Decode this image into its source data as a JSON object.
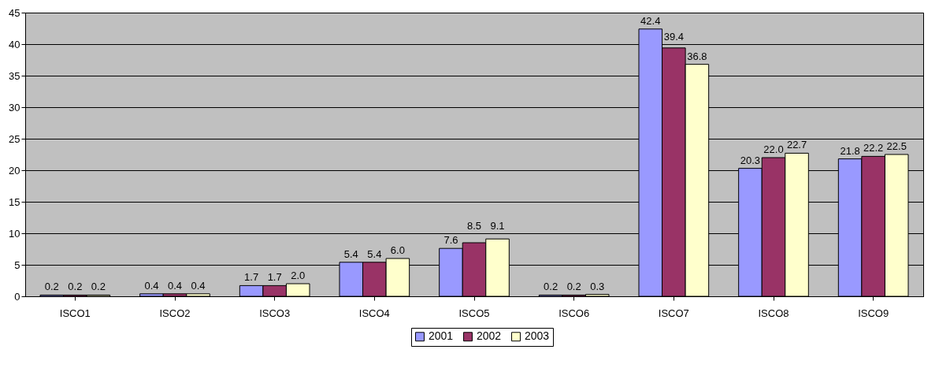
{
  "chart_data": {
    "type": "bar",
    "categories": [
      "ISCO1",
      "ISCO2",
      "ISCO3",
      "ISCO4",
      "ISCO5",
      "ISCO6",
      "ISCO7",
      "ISCO8",
      "ISCO9"
    ],
    "series": [
      {
        "name": "2001",
        "color": "#9999ff",
        "values": [
          0.2,
          0.4,
          1.7,
          5.4,
          7.6,
          0.2,
          42.4,
          20.3,
          21.8
        ],
        "value_labels": [
          "0.2",
          "0.4",
          "1.7",
          "5.4",
          "7.6",
          "0.2",
          "42.4",
          "20.3",
          "21.8"
        ]
      },
      {
        "name": "2002",
        "color": "#993366",
        "values": [
          0.2,
          0.4,
          1.7,
          5.4,
          8.5,
          0.2,
          39.4,
          22.0,
          22.2
        ],
        "value_labels": [
          "0.2",
          "0.4",
          "1.7",
          "5.4",
          "8.5",
          "0.2",
          "39.4",
          "22.0",
          "22.2"
        ]
      },
      {
        "name": "2003",
        "color": "#ffffcc",
        "values": [
          0.2,
          0.4,
          2.0,
          6.0,
          9.1,
          0.3,
          36.8,
          22.7,
          22.5
        ],
        "value_labels": [
          "0.2",
          "0.4",
          "2.0",
          "6.0",
          "9.1",
          "0.3",
          "36.8",
          "22.7",
          "22.5"
        ]
      }
    ],
    "ylim": [
      0,
      45
    ],
    "yticks": [
      0,
      5,
      10,
      15,
      20,
      25,
      30,
      35,
      40,
      45
    ],
    "grid": "y",
    "legend": "bottom"
  }
}
